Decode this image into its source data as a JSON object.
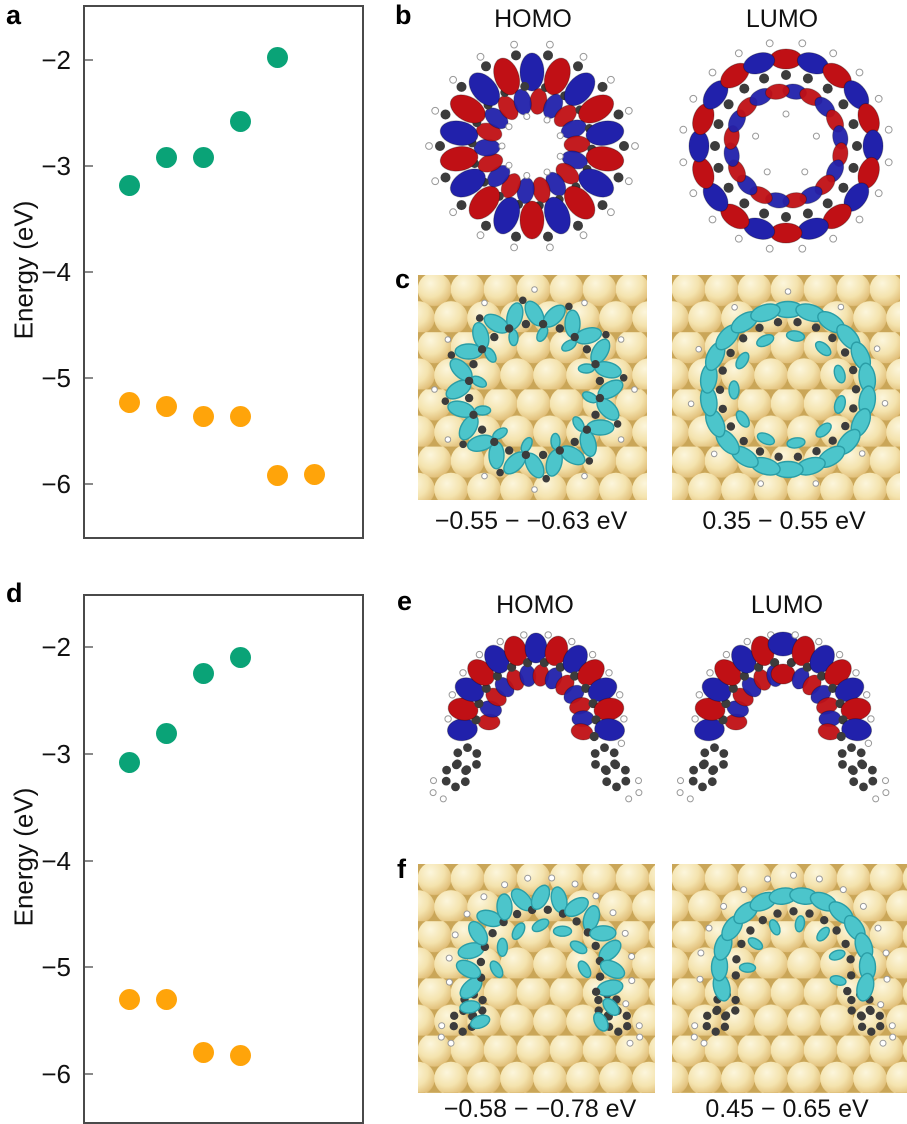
{
  "figure": {
    "panels": {
      "a": {
        "label": "a"
      },
      "b": {
        "label": "b",
        "homo_title": "HOMO",
        "lumo_title": "LUMO"
      },
      "c": {
        "label": "c",
        "left_caption": "−0.55 − −0.63 eV",
        "right_caption": "0.35 − 0.55 eV"
      },
      "d": {
        "label": "d"
      },
      "e": {
        "label": "e",
        "homo_title": "HOMO",
        "lumo_title": "LUMO"
      },
      "f": {
        "label": "f",
        "left_caption": "−0.58 − −0.78 eV",
        "right_caption": "0.45 − 0.65 eV"
      }
    }
  },
  "colors": {
    "green_dot": "#0aa377",
    "orange_dot": "#ffa40a",
    "orbital_red": "#c01015",
    "orbital_blue": "#2121ab",
    "orbital_cyan": "#4cc5cb",
    "orbital_cyan_edge": "#2a9da6",
    "gold_light": "#fcf6dc",
    "gold_mid": "#f4e3ae",
    "gold_dark": "#d4ad5f",
    "gold_gap": "#caa658",
    "carbon": "#3c3c3c",
    "hydrogen": "#ffffff",
    "axis": "#4a4a4a",
    "tick": "#8a8a8a"
  },
  "chart_data": [
    {
      "id": "a",
      "type": "scatter",
      "title": "",
      "xlabel": "",
      "ylabel": "Energy (eV)",
      "ylim": [
        -6.5,
        -1.5
      ],
      "yticks": [
        -2,
        -3,
        -4,
        -5,
        -6
      ],
      "ytick_labels": [
        "−2",
        "−3",
        "−4",
        "−5",
        "−6"
      ],
      "grid": false,
      "legend": null,
      "x_slots": 6,
      "series": [
        {
          "name": "green",
          "color_key": "green_dot",
          "x": [
            1,
            2,
            3,
            4,
            5
          ],
          "values": [
            -3.18,
            -2.92,
            -2.92,
            -2.58,
            -1.98
          ]
        },
        {
          "name": "orange",
          "color_key": "orange_dot",
          "x": [
            1,
            2,
            3,
            4,
            5,
            6
          ],
          "values": [
            -5.23,
            -5.27,
            -5.36,
            -5.36,
            -5.92,
            -5.91
          ]
        }
      ]
    },
    {
      "id": "d",
      "type": "scatter",
      "title": "",
      "xlabel": "",
      "ylabel": "Energy (eV)",
      "ylim": [
        -6.45,
        -1.52
      ],
      "yticks": [
        -2,
        -3,
        -4,
        -5,
        -6
      ],
      "ytick_labels": [
        "−2",
        "−3",
        "−4",
        "−5",
        "−6"
      ],
      "grid": false,
      "legend": null,
      "x_slots": 6,
      "series": [
        {
          "name": "green",
          "color_key": "green_dot",
          "x": [
            1,
            2,
            3,
            4
          ],
          "values": [
            -3.08,
            -2.81,
            -2.25,
            -2.1
          ]
        },
        {
          "name": "orange",
          "color_key": "orange_dot",
          "x": [
            1,
            2,
            3,
            4
          ],
          "values": [
            -5.3,
            -5.3,
            -5.8,
            -5.83
          ]
        }
      ]
    }
  ]
}
